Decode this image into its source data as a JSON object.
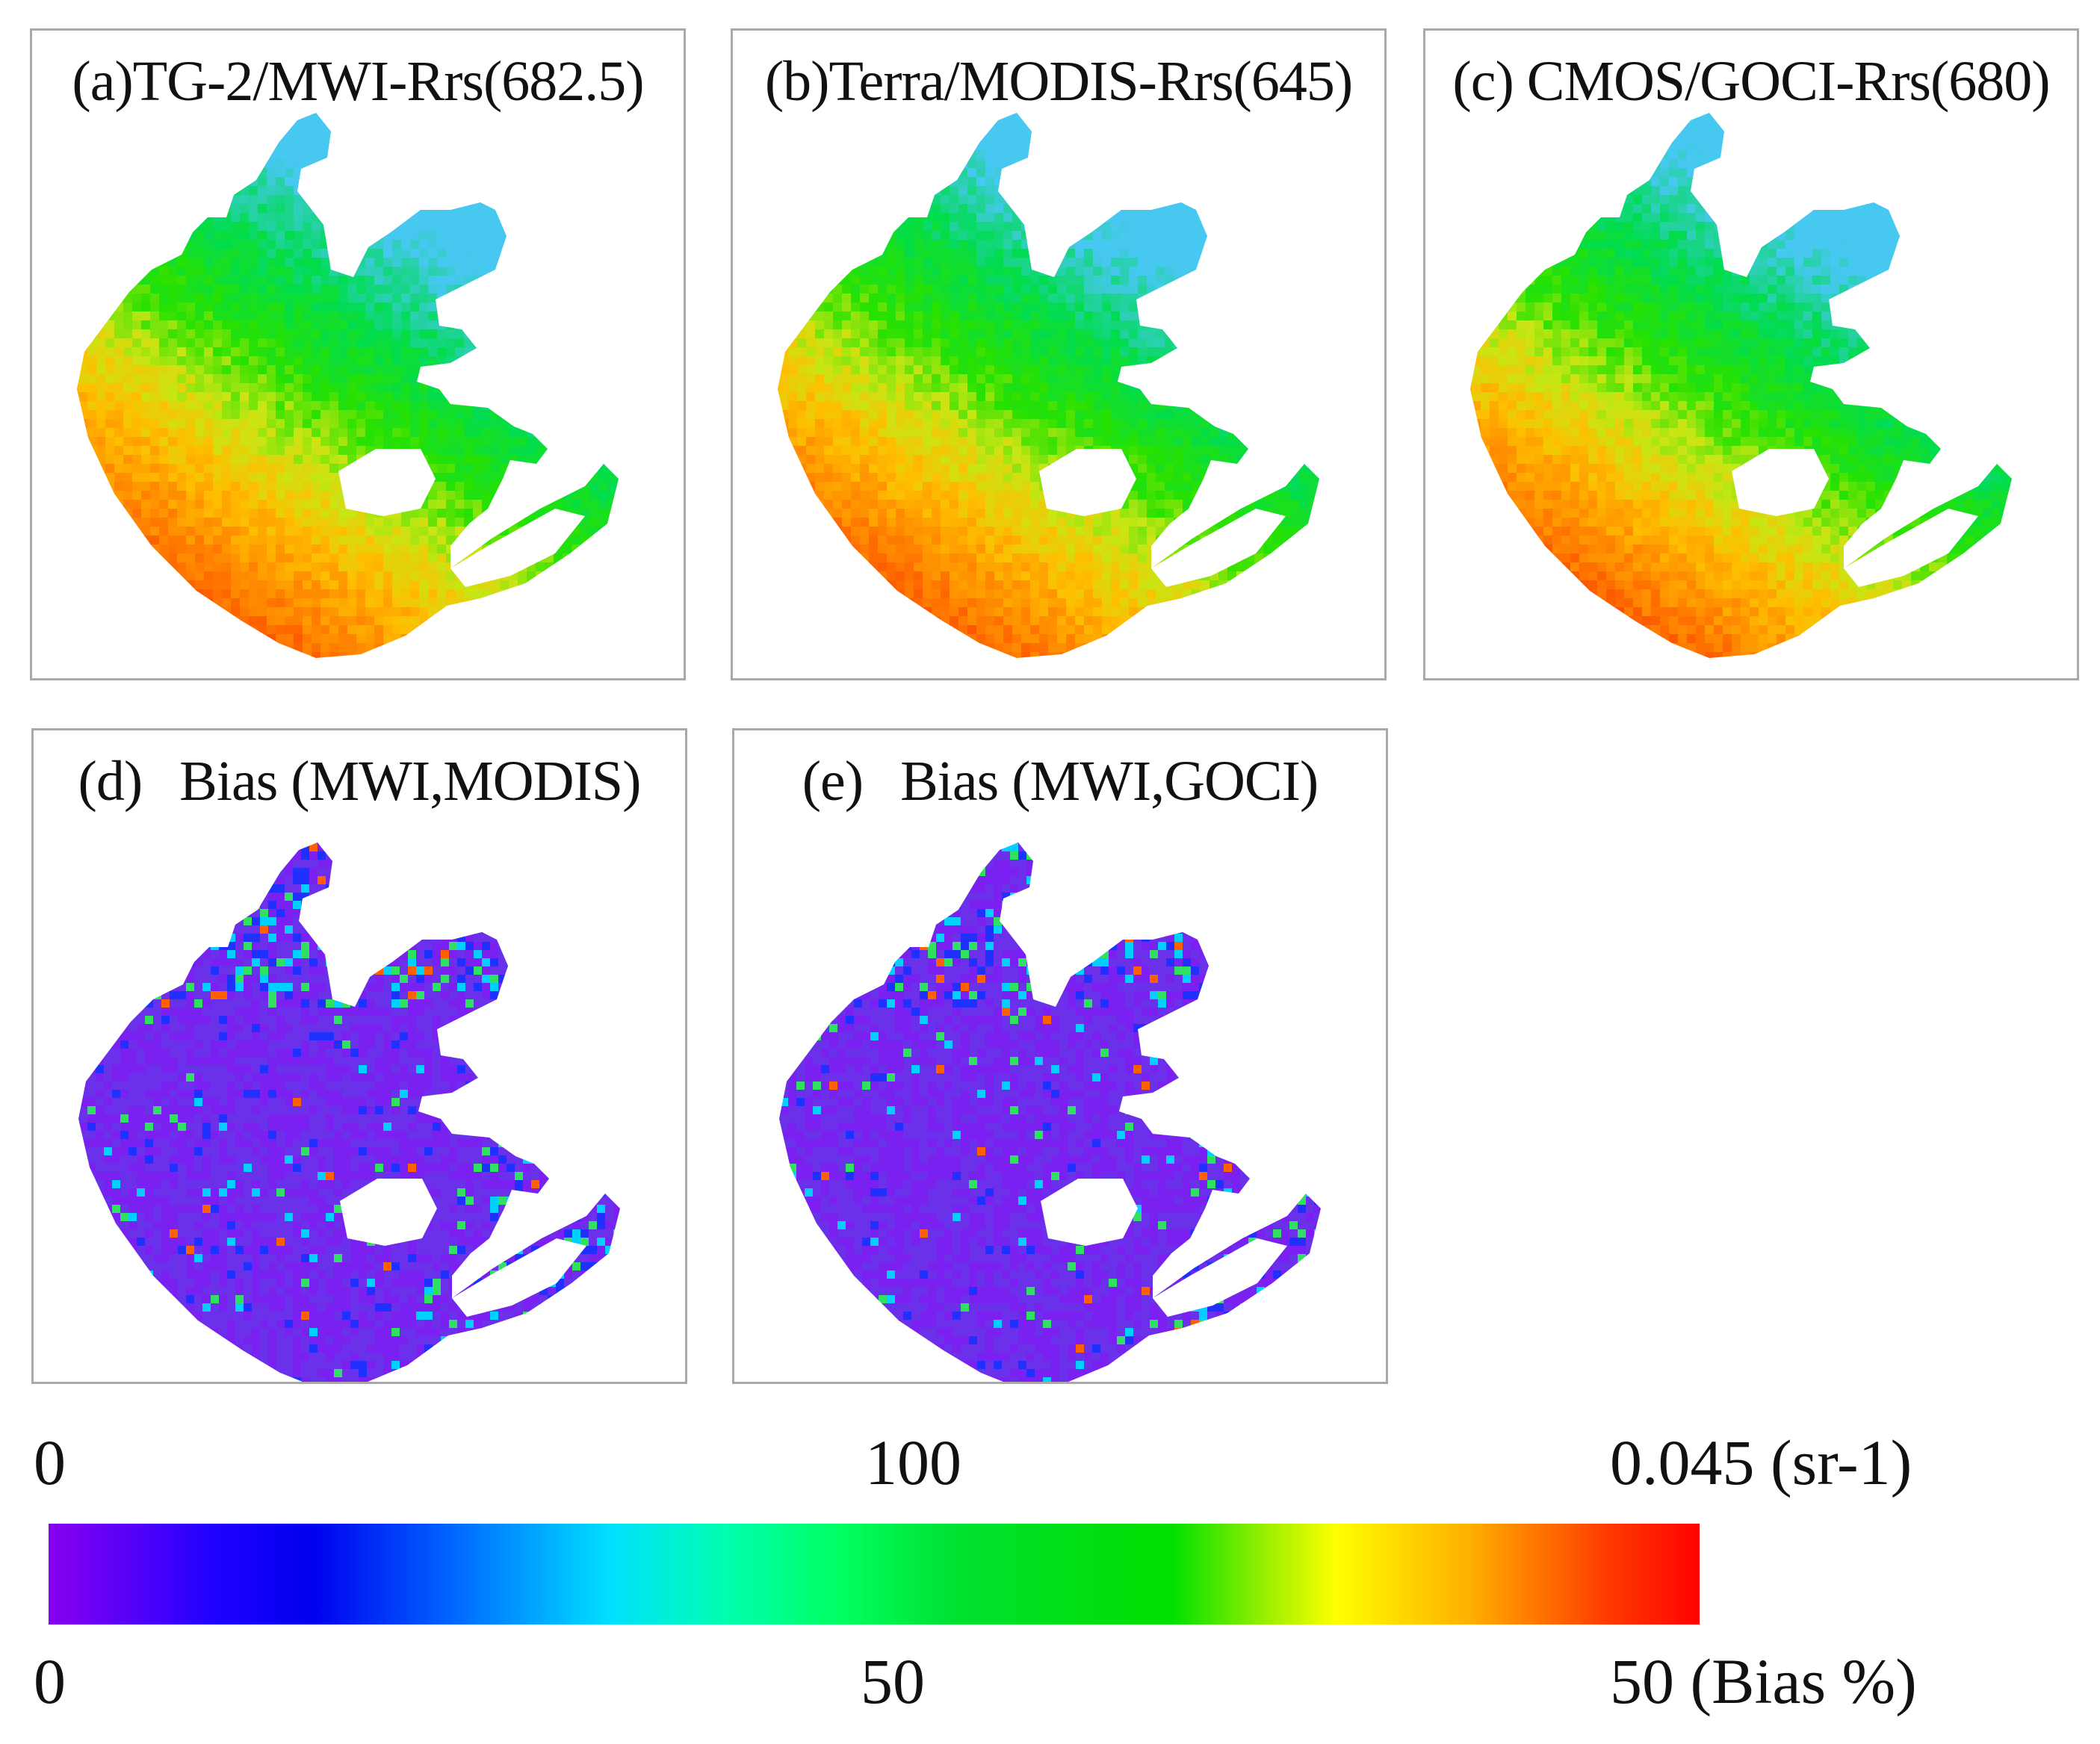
{
  "panels": [
    {
      "label": "(a)",
      "title": "TG-2/MWI-Rrs(682.5)",
      "kind": "rrs",
      "variant": 0
    },
    {
      "label": "(b)",
      "title": "Terra/MODIS-Rrs(645)",
      "kind": "rrs",
      "variant": 1
    },
    {
      "label": "(c)",
      "title": "CMOS/GOCI-Rrs(680)",
      "kind": "rrs",
      "variant": 2
    },
    {
      "label": "(d)",
      "title": "Bias (MWI,MODIS)",
      "kind": "bias",
      "variant": 0
    },
    {
      "label": "(e)",
      "title": "Bias (MWI,GOCI)",
      "kind": "bias",
      "variant": 1
    }
  ],
  "colorbar": {
    "rrs_scale": {
      "min": "0",
      "mid": "100",
      "max": "0.045 (sr-1)"
    },
    "bias_scale": {
      "min": "0",
      "mid": "50",
      "max": "50 (Bias %)"
    },
    "colors": [
      "#8a00f0",
      "#0000ee",
      "#00e0ff",
      "#00e000",
      "#ffff00",
      "#ff0000"
    ]
  }
}
